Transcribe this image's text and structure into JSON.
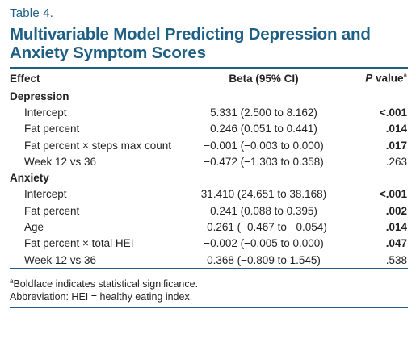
{
  "table_label": "Table 4.",
  "title": "Multivariable Model Predicting Depression and Anxiety Symptom Scores",
  "headers": {
    "effect": "Effect",
    "beta": "Beta (95% CI)",
    "p_italic": "P",
    "p_rest": " value",
    "p_sup": "a"
  },
  "groups": [
    {
      "name": "Depression",
      "rows": [
        {
          "effect": "Intercept",
          "beta": "5.331 (2.500 to 8.162)",
          "p": "<.001",
          "significant": true
        },
        {
          "effect": "Fat percent",
          "beta": "0.246 (0.051 to 0.441)",
          "p": ".014",
          "significant": true
        },
        {
          "effect": "Fat percent × steps max count",
          "beta": "−0.001 (−0.003 to 0.000)",
          "p": ".017",
          "significant": true
        },
        {
          "effect": "Week 12 vs 36",
          "beta": "−0.472 (−1.303 to 0.358)",
          "p": ".263",
          "significant": false
        }
      ]
    },
    {
      "name": "Anxiety",
      "rows": [
        {
          "effect": "Intercept",
          "beta": "31.410 (24.651 to 38.168)",
          "p": "<.001",
          "significant": true
        },
        {
          "effect": "Fat percent",
          "beta": "0.241 (0.088 to 0.395)",
          "p": ".002",
          "significant": true
        },
        {
          "effect": "Age",
          "beta": "−0.261 (−0.467 to −0.054)",
          "p": ".014",
          "significant": true
        },
        {
          "effect": "Fat percent × total HEI",
          "beta": "−0.002 (−0.005 to 0.000)",
          "p": ".047",
          "significant": true
        },
        {
          "effect": "Week 12 vs 36",
          "beta": "0.368 (−0.809 to 1.545)",
          "p": ".538",
          "significant": false
        }
      ]
    }
  ],
  "footnotes": {
    "sup": "a",
    "significance": "Boldface indicates statistical significance.",
    "abbreviation": "Abbreviation: HEI = healthy eating index."
  },
  "colors": {
    "accent": "#1e5f85",
    "text": "#222222"
  }
}
